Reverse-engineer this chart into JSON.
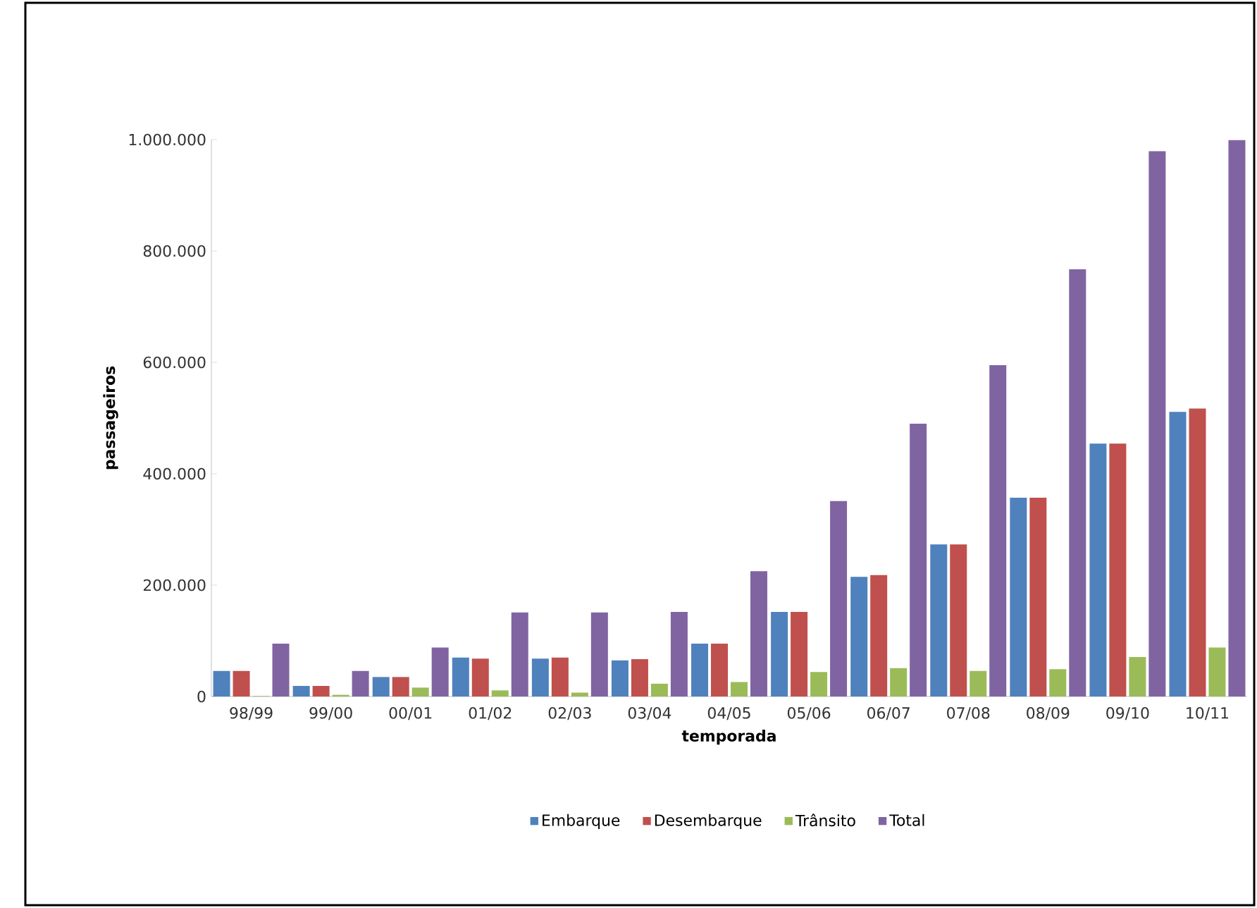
{
  "chart_data": {
    "type": "bar",
    "xlabel": "temporada",
    "ylabel": "passageiros",
    "categories": [
      "98/99",
      "99/00",
      "00/01",
      "01/02",
      "02/03",
      "03/04",
      "04/05",
      "05/06",
      "06/07",
      "07/08",
      "08/09",
      "09/10",
      "10/11"
    ],
    "series": [
      {
        "name": "Embarque",
        "color": "#4f81bd",
        "values": [
          46000,
          19000,
          35000,
          70000,
          68000,
          65000,
          95000,
          152000,
          215000,
          273000,
          357000,
          454000,
          511000
        ]
      },
      {
        "name": "Desembarque",
        "color": "#c0504d",
        "values": [
          46000,
          19000,
          35000,
          68000,
          70000,
          67000,
          95000,
          152000,
          218000,
          273000,
          357000,
          454000,
          517000
        ]
      },
      {
        "name": "Trânsito",
        "color": "#9bbb59",
        "values": [
          1000,
          3000,
          16000,
          11000,
          7000,
          23000,
          26000,
          44000,
          51000,
          46000,
          49000,
          71000,
          88000
        ]
      },
      {
        "name": "Total",
        "color": "#8064a2",
        "values": [
          95000,
          46000,
          88000,
          151000,
          151000,
          152000,
          225000,
          351000,
          490000,
          595000,
          767000,
          979000,
          999000
        ]
      }
    ],
    "ylim": [
      0,
      1000000
    ],
    "yticks": [
      {
        "value": 0,
        "label": "0"
      },
      {
        "value": 200000,
        "label": "200.000"
      },
      {
        "value": 400000,
        "label": "400.000"
      },
      {
        "value": 600000,
        "label": "600.000"
      },
      {
        "value": 800000,
        "label": "800.000"
      },
      {
        "value": 1000000,
        "label": "1.000.000"
      }
    ],
    "grid": false,
    "legend": "bottom"
  }
}
